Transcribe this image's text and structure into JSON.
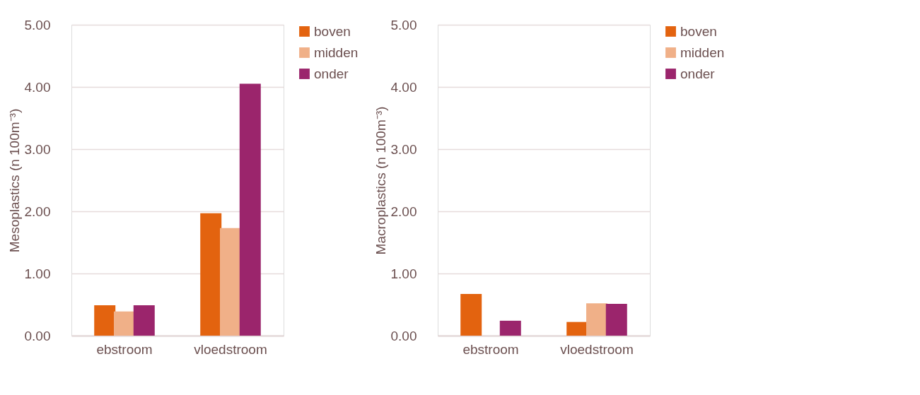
{
  "chart_data": [
    {
      "type": "bar",
      "ylabel": "Mesoplastics (n 100m⁻³)",
      "categories": [
        "ebstroom",
        "vloedstroom"
      ],
      "series": [
        {
          "name": "boven",
          "color": "#e3630f",
          "values": [
            0.49,
            1.97
          ]
        },
        {
          "name": "midden",
          "color": "#f0b088",
          "values": [
            0.39,
            1.73
          ]
        },
        {
          "name": "onder",
          "color": "#9b256c",
          "values": [
            0.49,
            4.05
          ]
        }
      ],
      "ylim": [
        0,
        5
      ],
      "yticks": [
        {
          "value": 0,
          "label": "0.00"
        },
        {
          "value": 1,
          "label": "1.00"
        },
        {
          "value": 2,
          "label": "2.00"
        },
        {
          "value": 3,
          "label": "3.00"
        },
        {
          "value": 4,
          "label": "4.00"
        },
        {
          "value": 5,
          "label": "5.00"
        }
      ],
      "grid": "y",
      "legend": "right"
    },
    {
      "type": "bar",
      "ylabel": "Macroplastics (n 100m⁻³)",
      "categories": [
        "ebstroom",
        "vloedstroom"
      ],
      "series": [
        {
          "name": "boven",
          "color": "#e3630f",
          "values": [
            0.67,
            0.22
          ]
        },
        {
          "name": "midden",
          "color": "#f0b088",
          "values": [
            0,
            0.52
          ]
        },
        {
          "name": "onder",
          "color": "#9b256c",
          "values": [
            0.24,
            0.51
          ]
        }
      ],
      "ylim": [
        0,
        5
      ],
      "yticks": [
        {
          "value": 0,
          "label": "0.00"
        },
        {
          "value": 1,
          "label": "1.00"
        },
        {
          "value": 2,
          "label": "2.00"
        },
        {
          "value": 3,
          "label": "3.00"
        },
        {
          "value": 4,
          "label": "4.00"
        },
        {
          "value": 5,
          "label": "5.00"
        }
      ],
      "grid": "y",
      "legend": "right"
    }
  ]
}
